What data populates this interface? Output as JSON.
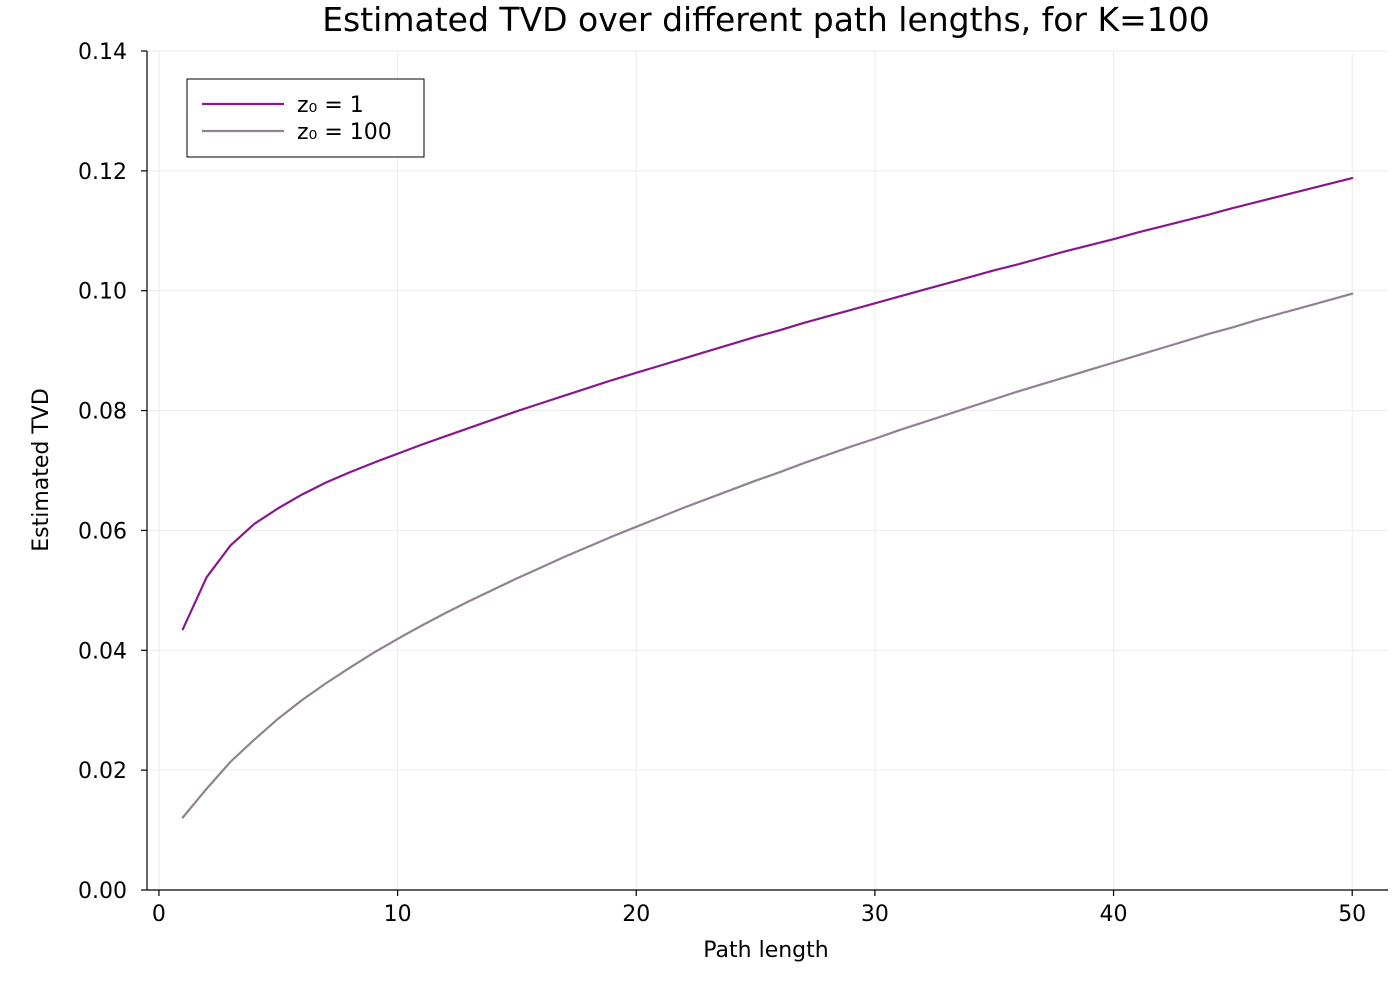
{
  "chart_data": {
    "type": "line",
    "title": "Estimated TVD over different path lengths, for K=100",
    "xlabel": "Path length",
    "ylabel": "Estimated TVD",
    "xlim": [
      -0.5,
      51.5
    ],
    "ylim": [
      0,
      0.14
    ],
    "xticks": [
      0,
      10,
      20,
      30,
      40,
      50
    ],
    "xtick_labels": [
      "0",
      "10",
      "20",
      "30",
      "40",
      "50"
    ],
    "yticks": [
      0,
      0.02,
      0.04,
      0.06,
      0.08,
      0.1,
      0.12,
      0.14
    ],
    "ytick_labels": [
      "0.00",
      "0.02",
      "0.04",
      "0.06",
      "0.08",
      "0.10",
      "0.12",
      "0.14"
    ],
    "grid": true,
    "legend_position": "top-left",
    "x": [
      1,
      2,
      3,
      4,
      5,
      6,
      7,
      8,
      9,
      10,
      11,
      12,
      13,
      14,
      15,
      16,
      17,
      18,
      19,
      20,
      21,
      22,
      23,
      24,
      25,
      26,
      27,
      28,
      29,
      30,
      31,
      32,
      33,
      34,
      35,
      36,
      37,
      38,
      39,
      40,
      41,
      42,
      43,
      44,
      45,
      46,
      47,
      48,
      49,
      50
    ],
    "series": [
      {
        "name": "z₀ = 1",
        "color": "#86198a",
        "values": [
          0.0435,
          0.0522,
          0.0575,
          0.0611,
          0.0637,
          0.066,
          0.068,
          0.0697,
          0.0713,
          0.0728,
          0.0743,
          0.0757,
          0.0771,
          0.0785,
          0.0799,
          0.0812,
          0.0825,
          0.0838,
          0.0851,
          0.0863,
          0.0875,
          0.0887,
          0.0899,
          0.0911,
          0.0923,
          0.0934,
          0.0946,
          0.0957,
          0.0968,
          0.0979,
          0.099,
          0.1001,
          0.1012,
          0.1023,
          0.1034,
          0.1044,
          0.1055,
          0.1066,
          0.1076,
          0.1086,
          0.1097,
          0.1107,
          0.1117,
          0.1127,
          0.1138,
          0.1148,
          0.1158,
          0.1168,
          0.1178,
          0.1188
        ]
      },
      {
        "name": "z₀ = 100",
        "color": "#908290",
        "values": [
          0.0121,
          0.0169,
          0.0214,
          0.0251,
          0.0286,
          0.0317,
          0.0345,
          0.0371,
          0.0396,
          0.0419,
          0.0441,
          0.0462,
          0.0482,
          0.0501,
          0.052,
          0.0538,
          0.0556,
          0.0573,
          0.059,
          0.0606,
          0.0622,
          0.0638,
          0.0653,
          0.0668,
          0.0683,
          0.0697,
          0.0712,
          0.0726,
          0.074,
          0.0753,
          0.0767,
          0.078,
          0.0793,
          0.0806,
          0.0819,
          0.0832,
          0.0844,
          0.0856,
          0.0868,
          0.088,
          0.0892,
          0.0904,
          0.0916,
          0.0928,
          0.0939,
          0.0951,
          0.0962,
          0.0973,
          0.0984,
          0.0995
        ]
      }
    ]
  }
}
